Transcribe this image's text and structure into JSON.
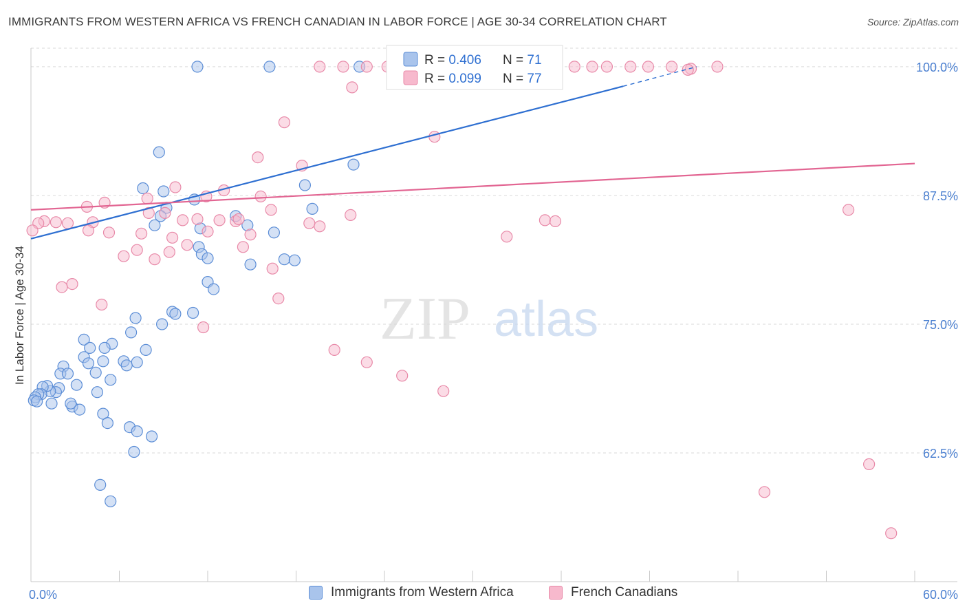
{
  "title": "IMMIGRANTS FROM WESTERN AFRICA VS FRENCH CANADIAN IN LABOR FORCE | AGE 30-34 CORRELATION CHART",
  "source": "Source: ZipAtlas.com",
  "colors": {
    "blue_fill": "#a9c4ec",
    "blue_stroke": "#5b8dd6",
    "blue_line": "#2e6fd1",
    "pink_fill": "#f7b9cd",
    "pink_stroke": "#e889a8",
    "pink_line": "#e26592",
    "axis_text": "#4a7fd0",
    "grid": "#d9d9d9"
  },
  "legend_top": {
    "rows": [
      {
        "r_label": "R = ",
        "r_value": "0.406",
        "n_label": "N = ",
        "n_value": "71"
      },
      {
        "r_label": "R = ",
        "r_value": "0.099",
        "n_label": "N = ",
        "n_value": "77"
      }
    ]
  },
  "legend_bottom": [
    "Immigrants from Western Africa",
    "French Canadians"
  ],
  "watermark": {
    "zip": "ZIP",
    "atlas": "atlas"
  },
  "chart_data": {
    "type": "scatter",
    "title": "IMMIGRANTS FROM WESTERN AFRICA VS FRENCH CANADIAN IN LABOR FORCE | AGE 30-34 CORRELATION CHART",
    "xlabel": "",
    "ylabel": "In Labor Force | Age 30-34",
    "xlim": [
      0,
      60
    ],
    "ylim": [
      50,
      101.8
    ],
    "x_tick_labels": [
      "0.0%",
      "60.0%"
    ],
    "y_ticks": [
      62.5,
      75.0,
      87.5,
      100.0
    ],
    "y_tick_labels": [
      "62.5%",
      "75.0%",
      "87.5%",
      "100.0%"
    ],
    "grid": true,
    "series": [
      {
        "name": "Immigrants from Western Africa",
        "R": 0.406,
        "N": 71,
        "trend": {
          "x0": 0.0,
          "y0": 83.3,
          "x1": 40.2,
          "y1": 98.1,
          "dash_x1": 45.2,
          "dash_y1": 100.0
        },
        "points": [
          [
            11.3,
            100
          ],
          [
            16.2,
            100
          ],
          [
            22.3,
            100
          ],
          [
            8.7,
            91.7
          ],
          [
            21.9,
            90.5
          ],
          [
            7.6,
            88.2
          ],
          [
            11.1,
            87.1
          ],
          [
            9.2,
            86.3
          ],
          [
            9.0,
            87.9
          ],
          [
            8.8,
            85.5
          ],
          [
            8.4,
            84.6
          ],
          [
            11.5,
            84.3
          ],
          [
            11.4,
            82.5
          ],
          [
            11.6,
            81.8
          ],
          [
            12.0,
            81.4
          ],
          [
            13.9,
            85.5
          ],
          [
            14.7,
            84.6
          ],
          [
            16.5,
            83.9
          ],
          [
            19.1,
            86.2
          ],
          [
            18.6,
            88.5
          ],
          [
            17.2,
            81.3
          ],
          [
            17.9,
            81.2
          ],
          [
            14.9,
            80.8
          ],
          [
            12.0,
            79.1
          ],
          [
            12.4,
            78.4
          ],
          [
            11.0,
            76.1
          ],
          [
            9.6,
            76.2
          ],
          [
            9.8,
            76.0
          ],
          [
            7.1,
            75.6
          ],
          [
            8.9,
            75.0
          ],
          [
            6.8,
            74.2
          ],
          [
            7.8,
            72.5
          ],
          [
            5.5,
            73.1
          ],
          [
            5.0,
            72.7
          ],
          [
            4.9,
            71.4
          ],
          [
            7.2,
            71.3
          ],
          [
            6.3,
            71.4
          ],
          [
            6.5,
            71.0
          ],
          [
            4.4,
            70.3
          ],
          [
            5.4,
            69.6
          ],
          [
            3.6,
            73.5
          ],
          [
            4.0,
            72.7
          ],
          [
            3.6,
            71.8
          ],
          [
            3.9,
            71.2
          ],
          [
            4.5,
            68.4
          ],
          [
            3.1,
            69.1
          ],
          [
            2.2,
            70.9
          ],
          [
            2.0,
            70.2
          ],
          [
            2.5,
            70.2
          ],
          [
            1.9,
            68.8
          ],
          [
            1.7,
            68.4
          ],
          [
            1.3,
            68.5
          ],
          [
            1.1,
            69.0
          ],
          [
            0.8,
            68.9
          ],
          [
            0.7,
            68.2
          ],
          [
            0.5,
            68.2
          ],
          [
            0.3,
            67.9
          ],
          [
            0.2,
            67.6
          ],
          [
            0.4,
            67.5
          ],
          [
            1.4,
            67.3
          ],
          [
            2.8,
            67.0
          ],
          [
            2.7,
            67.3
          ],
          [
            3.3,
            66.7
          ],
          [
            4.9,
            66.3
          ],
          [
            5.2,
            65.4
          ],
          [
            6.7,
            65.0
          ],
          [
            7.2,
            64.6
          ],
          [
            8.2,
            64.1
          ],
          [
            7.0,
            62.6
          ],
          [
            4.7,
            59.4
          ],
          [
            5.4,
            57.8
          ]
        ]
      },
      {
        "name": "French Canadians",
        "R": 0.099,
        "N": 77,
        "trend": {
          "x0": 0.0,
          "y0": 86.1,
          "x1": 60.0,
          "y1": 90.6
        },
        "points": [
          [
            19.6,
            100
          ],
          [
            21.2,
            100
          ],
          [
            22.8,
            100
          ],
          [
            24.2,
            100
          ],
          [
            25.6,
            100
          ],
          [
            26.6,
            100
          ],
          [
            28.6,
            100
          ],
          [
            30.3,
            100
          ],
          [
            32.6,
            100
          ],
          [
            34.8,
            100
          ],
          [
            36.9,
            100
          ],
          [
            38.1,
            100
          ],
          [
            39.1,
            100
          ],
          [
            40.7,
            100
          ],
          [
            41.9,
            100
          ],
          [
            43.5,
            100
          ],
          [
            46.6,
            100
          ],
          [
            44.8,
            99.8
          ],
          [
            44.6,
            99.7
          ],
          [
            21.8,
            98.0
          ],
          [
            17.2,
            94.6
          ],
          [
            27.4,
            93.2
          ],
          [
            15.4,
            91.2
          ],
          [
            18.4,
            90.4
          ],
          [
            9.8,
            88.3
          ],
          [
            13.1,
            88.0
          ],
          [
            15.6,
            87.4
          ],
          [
            11.9,
            87.4
          ],
          [
            7.9,
            87.2
          ],
          [
            5.0,
            86.8
          ],
          [
            3.8,
            86.4
          ],
          [
            16.3,
            86.1
          ],
          [
            8.0,
            85.8
          ],
          [
            9.1,
            85.8
          ],
          [
            10.3,
            85.1
          ],
          [
            11.3,
            85.2
          ],
          [
            12.8,
            85.1
          ],
          [
            13.9,
            85.0
          ],
          [
            14.1,
            85.2
          ],
          [
            18.9,
            84.8
          ],
          [
            19.6,
            84.5
          ],
          [
            21.7,
            85.6
          ],
          [
            34.9,
            85.1
          ],
          [
            35.6,
            85.0
          ],
          [
            55.5,
            86.1
          ],
          [
            4.2,
            84.9
          ],
          [
            3.9,
            84.1
          ],
          [
            2.5,
            84.8
          ],
          [
            1.7,
            84.9
          ],
          [
            0.9,
            85.0
          ],
          [
            0.5,
            84.8
          ],
          [
            0.1,
            84.1
          ],
          [
            5.3,
            83.9
          ],
          [
            7.5,
            83.8
          ],
          [
            9.6,
            83.4
          ],
          [
            12.0,
            84.0
          ],
          [
            14.9,
            83.7
          ],
          [
            32.3,
            83.5
          ],
          [
            10.6,
            82.7
          ],
          [
            14.4,
            82.5
          ],
          [
            7.2,
            82.2
          ],
          [
            6.3,
            81.6
          ],
          [
            8.4,
            81.3
          ],
          [
            9.4,
            82.0
          ],
          [
            16.4,
            80.4
          ],
          [
            2.8,
            78.9
          ],
          [
            2.1,
            78.6
          ],
          [
            16.8,
            77.5
          ],
          [
            4.8,
            76.9
          ],
          [
            11.7,
            74.7
          ],
          [
            20.6,
            72.5
          ],
          [
            22.8,
            71.3
          ],
          [
            25.2,
            70.0
          ],
          [
            28.0,
            68.5
          ],
          [
            56.9,
            61.4
          ],
          [
            49.8,
            58.7
          ],
          [
            58.4,
            54.7
          ]
        ]
      }
    ]
  }
}
